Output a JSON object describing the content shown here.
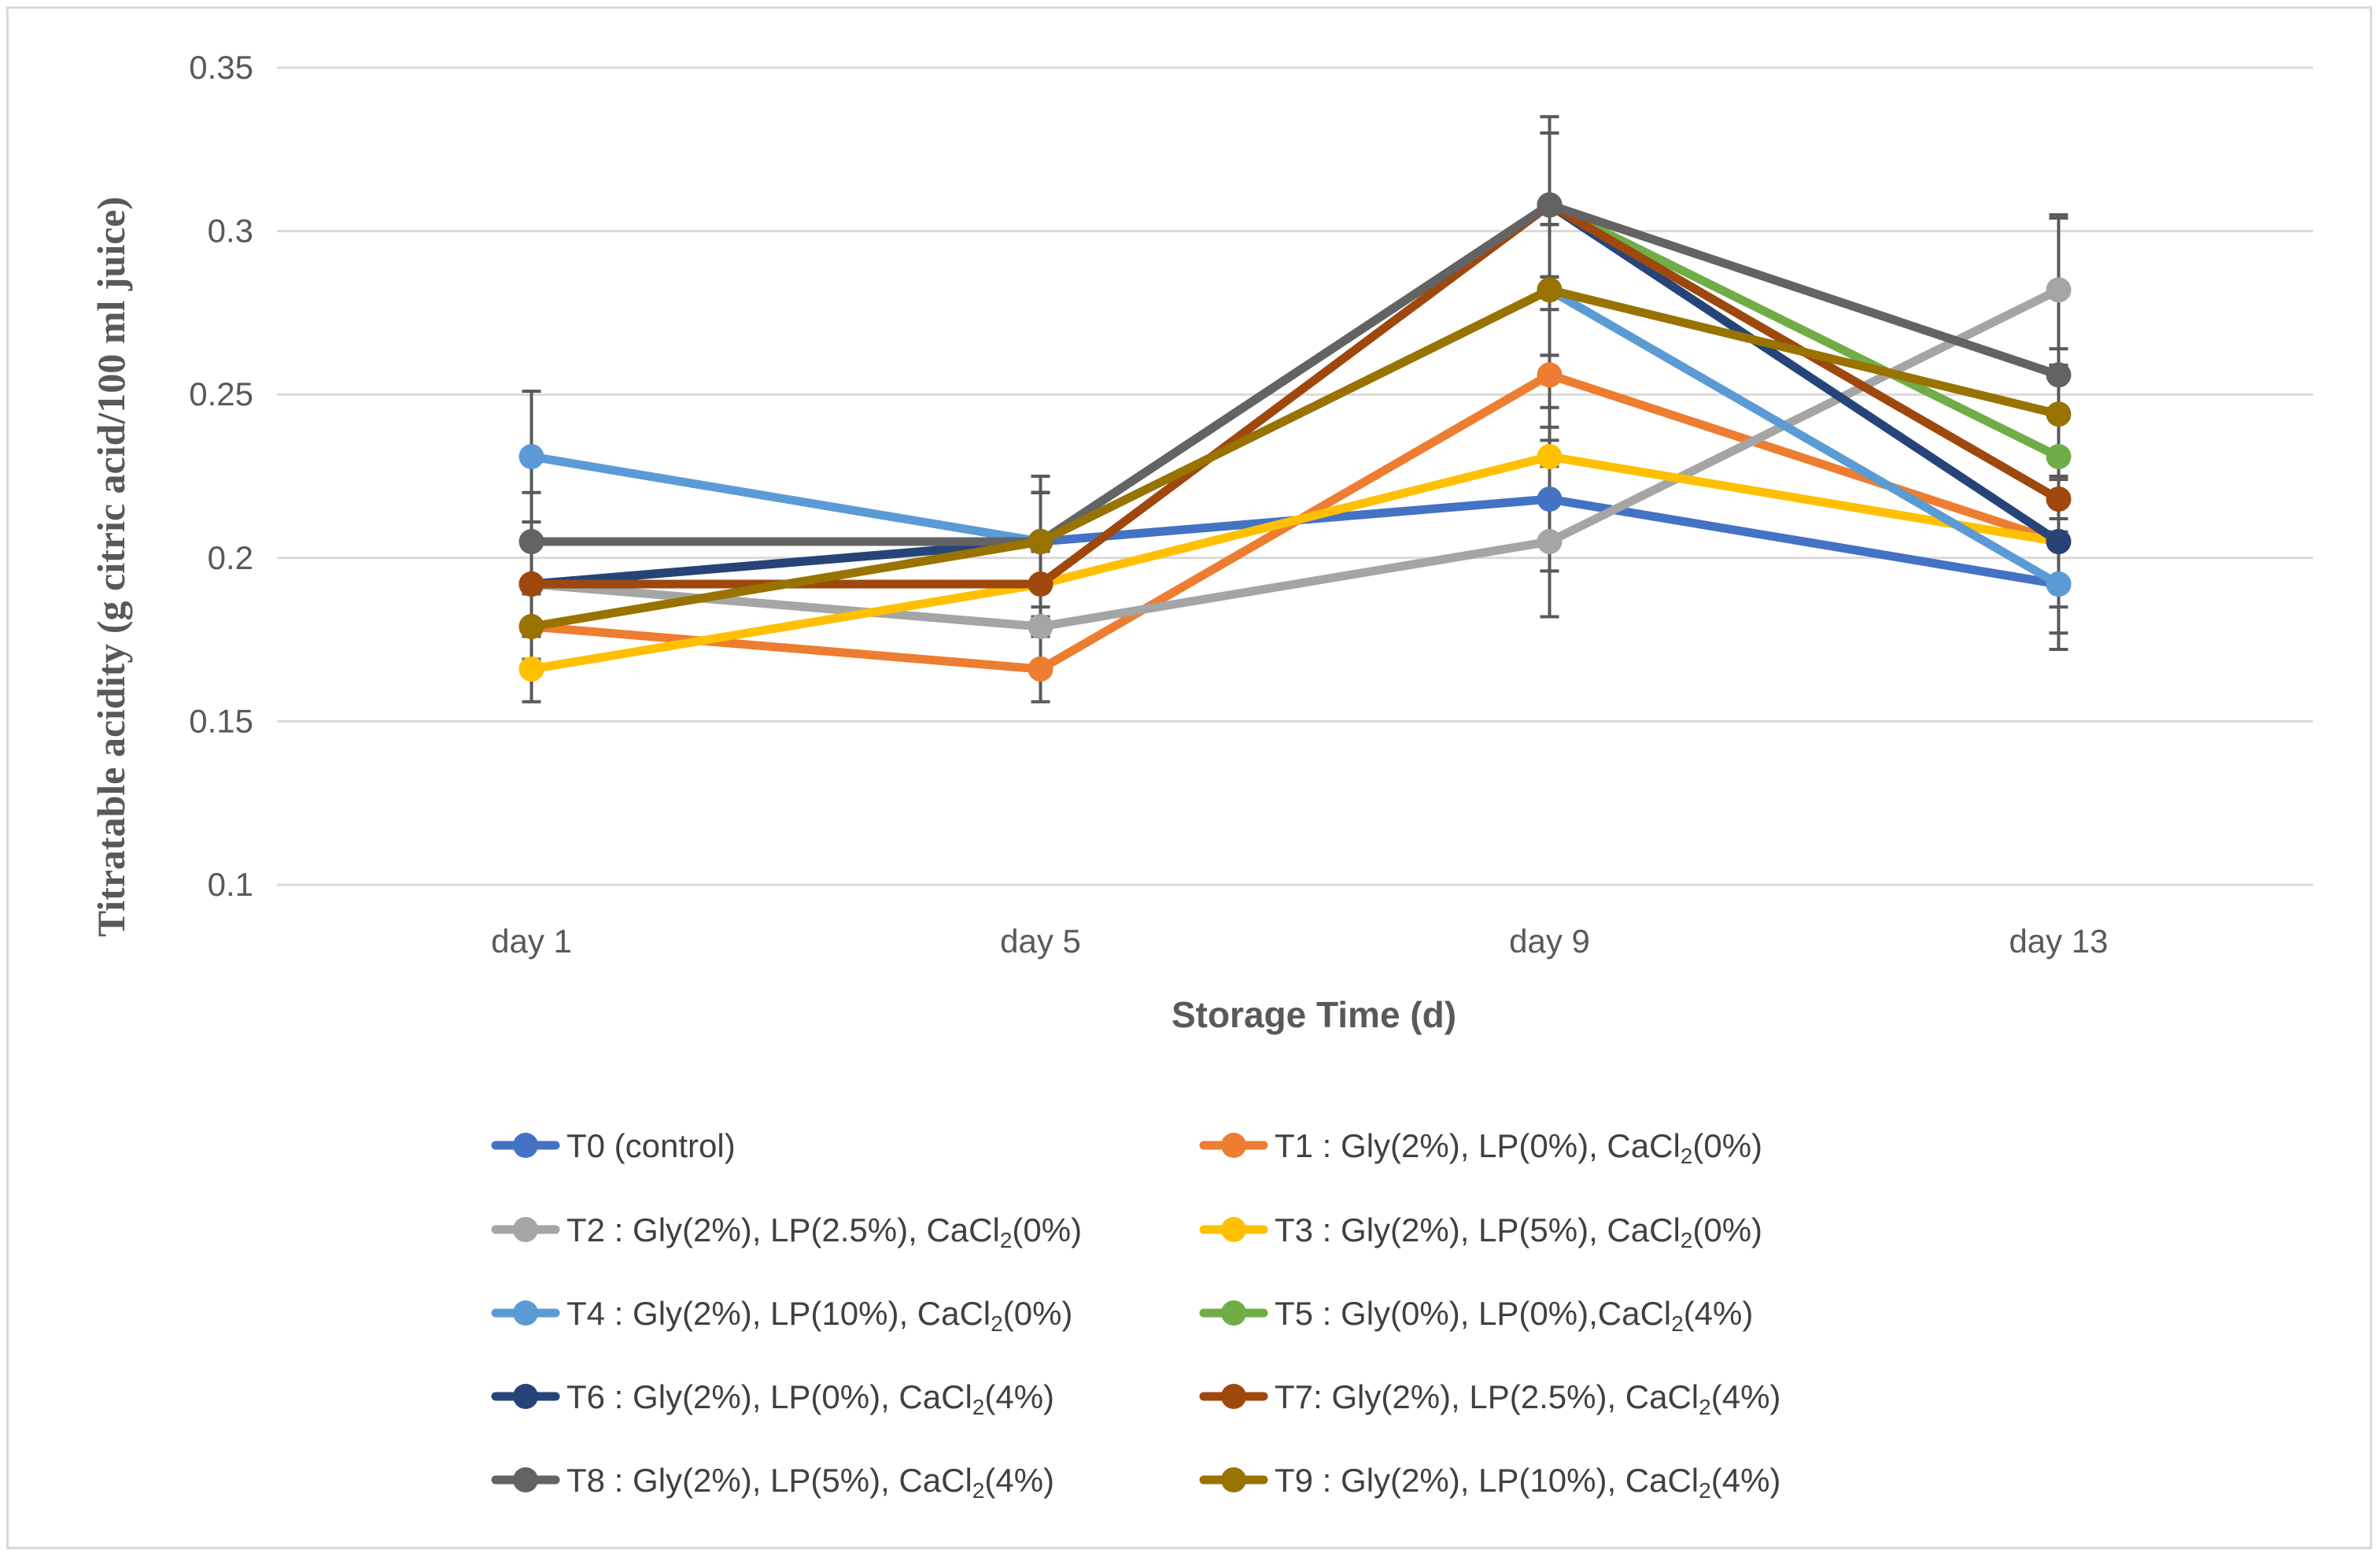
{
  "chart_data": {
    "type": "line",
    "title": "",
    "xlabel": "Storage Time (d)",
    "ylabel": "Titratable acidity (g citric acid/100 ml juice)",
    "categories": [
      "day 1",
      "day 5",
      "day 9",
      "day 13"
    ],
    "ylim": [
      0.1,
      0.35
    ],
    "yticks": [
      0.1,
      0.15,
      0.2,
      0.25,
      0.3,
      0.35
    ],
    "ytick_labels": [
      "0.1",
      "0.15",
      "0.2",
      "0.25",
      "0.3",
      "0.35"
    ],
    "grid": true,
    "legend_position": "bottom",
    "series": [
      {
        "name": "T0 (control)",
        "label_main": "T0 (control)",
        "label_sub": "",
        "label_tail": "",
        "color": "#4472c4",
        "values": [
          0.192,
          0.205,
          0.218,
          0.192
        ],
        "errors": [
          0.015,
          0.015,
          0.022,
          0.015
        ]
      },
      {
        "name": "T1 : Gly(2%), LP(0%), CaCl2(0%)",
        "label_main": "T1 : Gly(2%), LP(0%), CaCl",
        "label_sub": "2",
        "label_tail": "(0%)",
        "color": "#ed7d31",
        "values": [
          0.179,
          0.166,
          0.256,
          0.205
        ],
        "errors": [
          0.015,
          0.01,
          0.02,
          0.02
        ]
      },
      {
        "name": "T2 : Gly(2%), LP(2.5%), CaCl2(0%)",
        "label_main": "T2 : Gly(2%), LP(2.5%), CaCl",
        "label_sub": "2",
        "label_tail": "(0%)",
        "color": "#a5a5a5",
        "values": [
          0.192,
          0.179,
          0.205,
          0.282
        ],
        "errors": [
          0.015,
          0.015,
          0.023,
          0.023
        ]
      },
      {
        "name": "T3 : Gly(2%), LP(5%), CaCl2(0%)",
        "label_main": "T3 : Gly(2%), LP(5%), CaCl",
        "label_sub": "2",
        "label_tail": "(0%)",
        "color": "#ffc000",
        "values": [
          0.166,
          0.192,
          0.231,
          0.205
        ],
        "errors": [
          0.01,
          0.01,
          0.015,
          0.015
        ]
      },
      {
        "name": "T4 : Gly(2%), LP(10%), CaCl2(0%)",
        "label_main": "T4 : Gly(2%), LP(10%), CaCl",
        "label_sub": "2",
        "label_tail": "(0%)",
        "color": "#5b9bd5",
        "values": [
          0.231,
          0.205,
          0.282,
          0.192
        ],
        "errors": [
          0.02,
          0.015,
          0.02,
          0.02
        ]
      },
      {
        "name": "T5 : Gly(0%), LP(0%),CaCl2(4%)",
        "label_main": "T5 : Gly(0%), LP(0%),CaCl",
        "label_sub": "2",
        "label_tail": "(4%)",
        "color": "#70ad47",
        "values": [
          0.192,
          0.205,
          0.308,
          0.231
        ],
        "errors": [
          0.015,
          0.015,
          0.022,
          0.015
        ]
      },
      {
        "name": "T6 : Gly(2%), LP(0%), CaCl2(4%)",
        "label_main": "T6 : Gly(2%), LP(0%), CaCl",
        "label_sub": "2",
        "label_tail": "(4%)",
        "color": "#264478",
        "values": [
          0.192,
          0.205,
          0.308,
          0.205
        ],
        "errors": [
          0.015,
          0.015,
          0.022,
          0.015
        ]
      },
      {
        "name": "T7: Gly(2%), LP(2.5%), CaCl2(4%)",
        "label_main": "T7: Gly(2%), LP(2.5%), CaCl",
        "label_sub": "2",
        "label_tail": "(4%)",
        "color": "#9e480e",
        "values": [
          0.192,
          0.192,
          0.308,
          0.218
        ],
        "errors": [
          0.015,
          0.015,
          0.022,
          0.015
        ]
      },
      {
        "name": "T8 : Gly(2%), LP(5%), CaCl2(4%)",
        "label_main": "T8 : Gly(2%), LP(5%), CaCl",
        "label_sub": "2",
        "label_tail": "(4%)",
        "color": "#636363",
        "values": [
          0.205,
          0.205,
          0.308,
          0.256
        ],
        "errors": [
          0.015,
          0.015,
          0.027,
          0.048
        ]
      },
      {
        "name": "T9 : Gly(2%), LP(10%), CaCl2(4%)",
        "label_main": "T9 : Gly(2%), LP(10%), CaCl",
        "label_sub": "2",
        "label_tail": "(4%)",
        "color": "#997300",
        "values": [
          0.179,
          0.205,
          0.282,
          0.244
        ],
        "errors": [
          0.01,
          0.02,
          0.02,
          0.02
        ]
      }
    ]
  }
}
